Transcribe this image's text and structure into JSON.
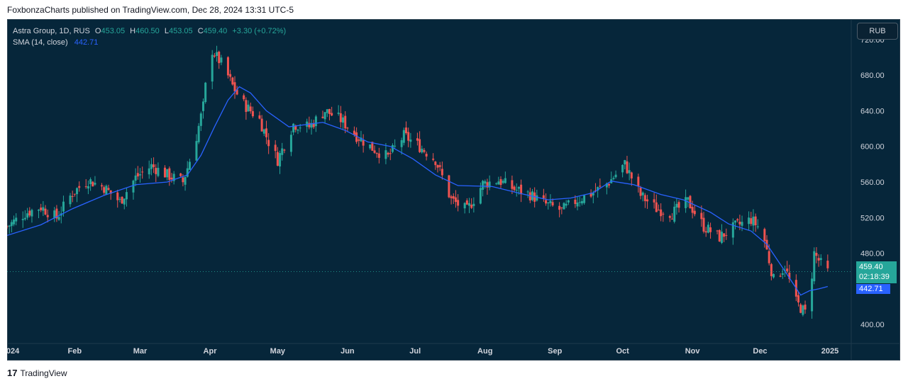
{
  "header": {
    "text": "FoxbonzaCharts published on TradingView.com, Dec 28, 2024 13:31 UTC-5"
  },
  "footer": {
    "logo": "17",
    "brand": "TradingView"
  },
  "legend": {
    "symbol": "Astra Group, 1D, RUS",
    "open_label": "O",
    "open": "453.05",
    "high_label": "H",
    "high": "460.50",
    "low_label": "L",
    "low": "453.05",
    "close_label": "C",
    "close": "459.40",
    "change": "+3.30 (+0.72%)",
    "sma_label": "SMA (14, close)",
    "sma_value": "442.71"
  },
  "currency_button": "RUB",
  "price_tag": {
    "price": "459.40",
    "countdown": "02:18:39",
    "sma": "442.71"
  },
  "colors": {
    "bg": "#06263a",
    "up": "#26a69a",
    "down": "#ef5350",
    "sma": "#2962ff",
    "text": "#d1d4dc"
  },
  "chart_data": {
    "type": "line",
    "title": "Astra Group, 1D, RUS",
    "yticks": [
      "720.00",
      "680.00",
      "640.00",
      "600.00",
      "560.00",
      "520.00",
      "480.00",
      "400.00"
    ],
    "ytick_values": [
      720,
      680,
      640,
      600,
      560,
      520,
      480,
      400
    ],
    "ylim": [
      385,
      735
    ],
    "xticks": [
      "024",
      "Feb",
      "Mar",
      "Apr",
      "May",
      "Jun",
      "Jul",
      "Aug",
      "Sep",
      "Oct",
      "Nov",
      "Dec",
      "2025"
    ],
    "xtick_days": [
      0,
      30,
      59,
      90,
      120,
      151,
      181,
      212,
      243,
      273,
      304,
      334,
      365
    ],
    "last_close": 459.4,
    "series": [
      {
        "name": "Close (approx.)",
        "days": [
          0,
          8,
          15,
          22,
          29,
          36,
          43,
          50,
          57,
          64,
          71,
          78,
          83,
          87,
          90,
          93,
          96,
          100,
          104,
          108,
          112,
          116,
          120,
          127,
          134,
          141,
          148,
          155,
          162,
          169,
          176,
          183,
          190,
          197,
          204,
          211,
          218,
          225,
          232,
          239,
          246,
          253,
          260,
          267,
          274,
          281,
          288,
          295,
          302,
          309,
          316,
          323,
          330,
          335,
          340,
          345,
          350,
          355,
          358,
          361,
          364
        ],
        "values": [
          510,
          525,
          532,
          520,
          548,
          562,
          554,
          538,
          565,
          578,
          568,
          560,
          600,
          645,
          712,
          700,
          690,
          668,
          650,
          640,
          630,
          605,
          585,
          625,
          622,
          640,
          630,
          612,
          598,
          588,
          612,
          600,
          585,
          540,
          528,
          558,
          562,
          552,
          546,
          535,
          528,
          540,
          548,
          560,
          580,
          545,
          530,
          525,
          538,
          510,
          498,
          510,
          518,
          505,
          450,
          465,
          425,
          410,
          480,
          468,
          459
        ]
      },
      {
        "name": "SMA (14, close)",
        "days": [
          0,
          15,
          29,
          43,
          57,
          71,
          80,
          86,
          92,
          98,
          103,
          108,
          115,
          125,
          140,
          150,
          160,
          170,
          180,
          190,
          200,
          215,
          228,
          240,
          250,
          260,
          268,
          278,
          290,
          300,
          312,
          320,
          330,
          337,
          345,
          352,
          356,
          360,
          364
        ],
        "values": [
          500,
          512,
          530,
          545,
          557,
          560,
          568,
          590,
          622,
          652,
          667,
          660,
          640,
          622,
          627,
          618,
          605,
          600,
          586,
          568,
          556,
          555,
          547,
          540,
          542,
          548,
          561,
          557,
          546,
          540,
          526,
          513,
          505,
          490,
          460,
          433,
          438,
          440,
          442.71
        ]
      }
    ]
  }
}
